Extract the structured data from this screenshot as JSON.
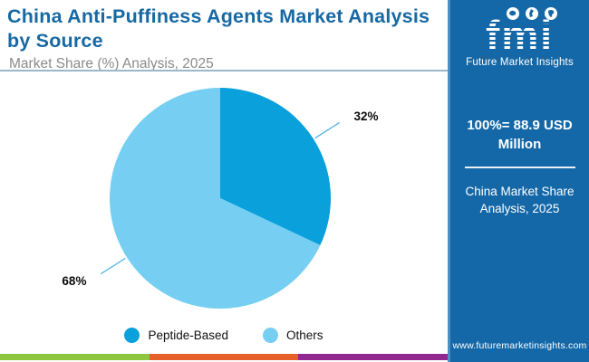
{
  "header": {
    "title": "China Anti-Puffiness Agents Market Analysis by Source",
    "subtitle": "Market Share (%) Analysis, 2025"
  },
  "chart_data": {
    "type": "pie",
    "title": "China Anti-Puffiness Agents Market Analysis by Source",
    "subtitle": "Market Share (%) Analysis, 2025",
    "unit": "%",
    "start_angle_deg": 0,
    "direction": "clockwise",
    "legend_position": "bottom",
    "slices": [
      {
        "label": "Peptide-Based",
        "value": 32,
        "data_label": "32%",
        "color": "#09A0DB"
      },
      {
        "label": "Others",
        "value": 68,
        "data_label": "68%",
        "color": "#76CFF2"
      }
    ],
    "leader_line_color": "#56B5E6",
    "data_label_color": "#0B0B0B"
  },
  "sidebar": {
    "background": "#1568A7",
    "logo_text": "fmi",
    "logo_tagline": "Future Market Insights",
    "stat": "100%= 88.9 USD Million",
    "caption": "China Market Share Analysis, 2025",
    "website": "www.futuremarketinsights.com"
  },
  "footer_bar": {
    "colors": [
      "#8DC63F",
      "#E6602A",
      "#92278F"
    ]
  },
  "palette": {
    "title_blue": "#1769A3",
    "subtitle_gray": "#8B8B8B",
    "rule_blue": "#9DB7C8"
  }
}
